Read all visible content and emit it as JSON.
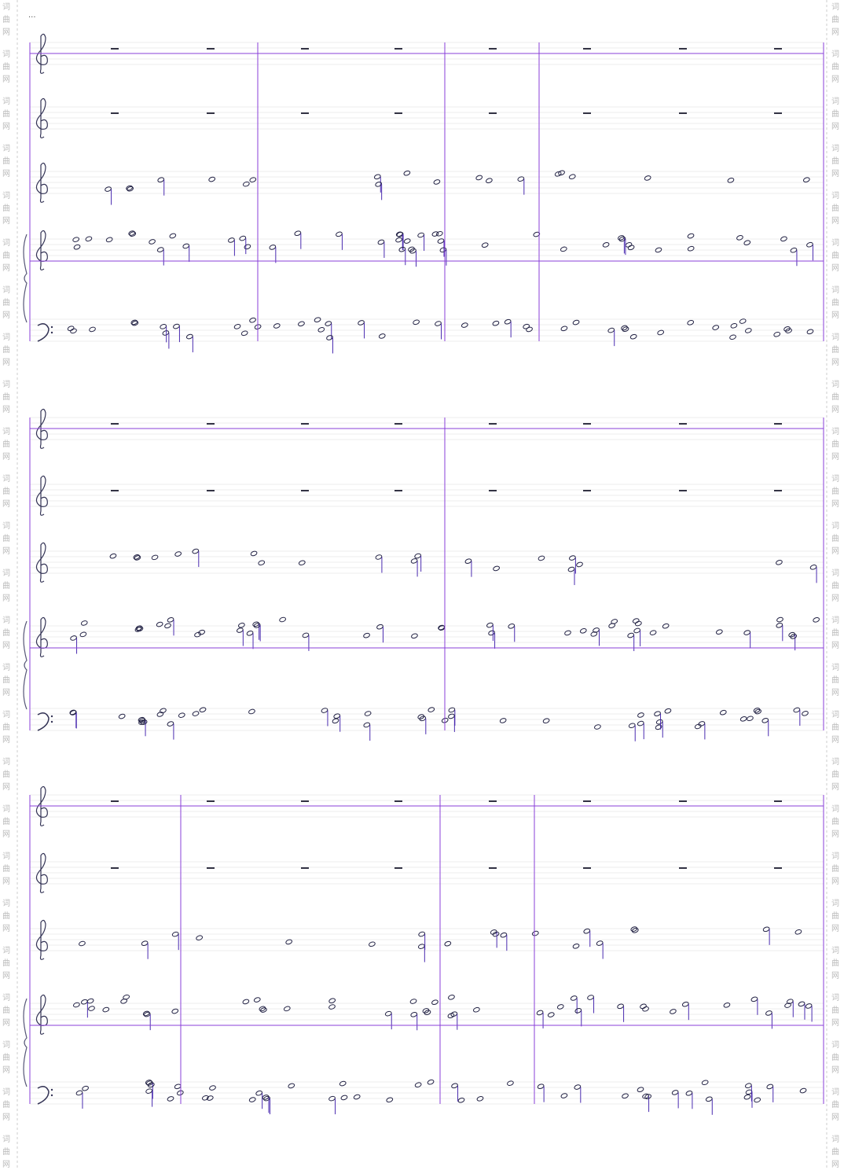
{
  "header": {
    "mark": "..."
  },
  "watermark": [
    "词",
    "曲",
    "网"
  ]
}
